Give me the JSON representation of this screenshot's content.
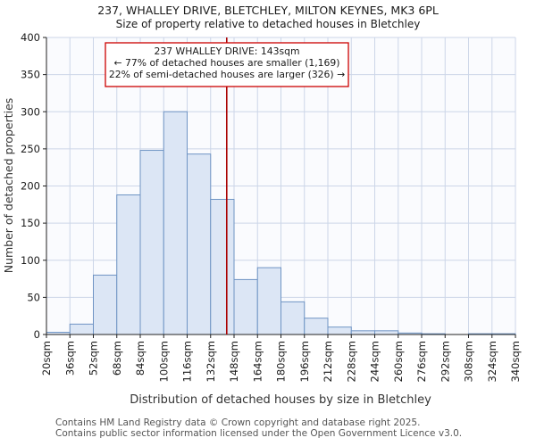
{
  "chart_data": {
    "type": "bar",
    "title": "237, WHALLEY DRIVE, BLETCHLEY, MILTON KEYNES, MK3 6PL",
    "subtitle": "Size of property relative to detached houses in Bletchley",
    "xlabel": "Distribution of detached houses by size in Bletchley",
    "ylabel": "Number of detached properties",
    "bin_start": 20,
    "bin_width_sqm": 16,
    "categories": [
      "20sqm",
      "36sqm",
      "52sqm",
      "68sqm",
      "84sqm",
      "100sqm",
      "116sqm",
      "132sqm",
      "148sqm",
      "164sqm",
      "180sqm",
      "196sqm",
      "212sqm",
      "228sqm",
      "244sqm",
      "260sqm",
      "276sqm",
      "292sqm",
      "308sqm",
      "324sqm",
      "340sqm"
    ],
    "values": [
      3,
      14,
      80,
      188,
      248,
      300,
      243,
      182,
      74,
      90,
      44,
      22,
      10,
      5,
      5,
      2,
      1,
      0,
      1,
      1
    ],
    "ylim": [
      0,
      400
    ],
    "yticks": [
      0,
      50,
      100,
      150,
      200,
      250,
      300,
      350,
      400
    ],
    "grid": true,
    "legend": "none",
    "marker": {
      "value_sqm": 143,
      "line1": "237 WHALLEY DRIVE: 143sqm",
      "line2": "← 77% of detached houses are smaller (1,169)",
      "line3": "22% of semi-detached houses are larger (326) →"
    },
    "colors": {
      "bar_fill": "#dce6f5",
      "bar_stroke": "#6f94c4",
      "marker_line": "#aa0000",
      "annotation_border": "#cc0000",
      "grid": "#ccd6e8",
      "axis": "#222222"
    }
  },
  "footer": {
    "line1": "Contains HM Land Registry data © Crown copyright and database right 2025.",
    "line2": "Contains public sector information licensed under the Open Government Licence v3.0."
  }
}
